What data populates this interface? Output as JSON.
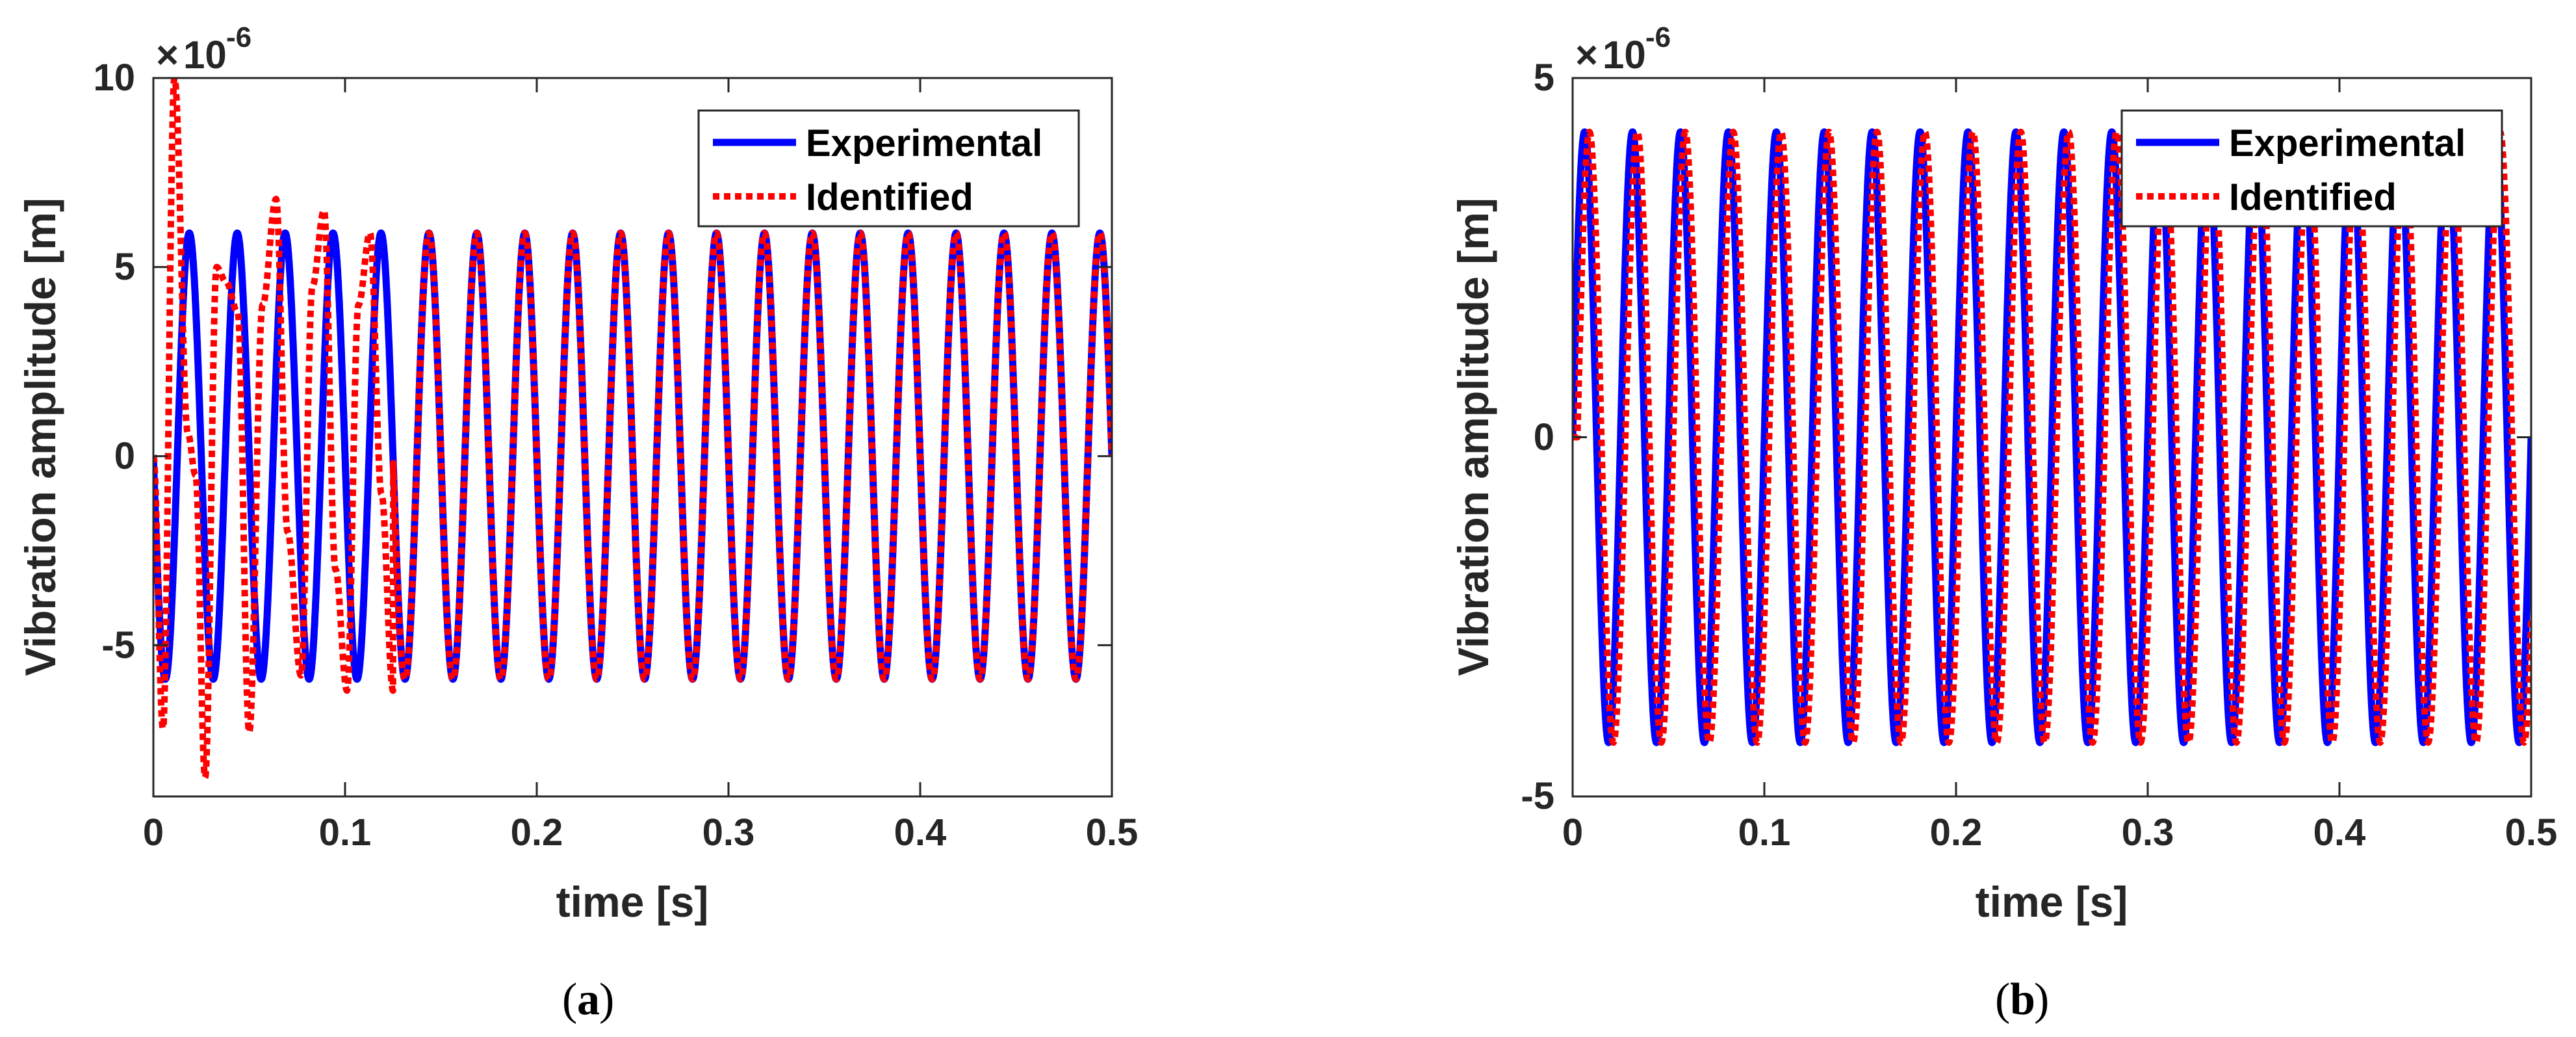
{
  "chart_data": [
    {
      "type": "line",
      "caption_letter": "a",
      "xlabel": "time [s]",
      "ylabel": "Vibration amplitude [m]",
      "y_scale_base": "10",
      "y_scale_exponent": "-6",
      "xlim": [
        0,
        0.5
      ],
      "ylim": [
        -9,
        10
      ],
      "x_ticks": [
        "0",
        "0.1",
        "0.2",
        "0.3",
        "0.4",
        "0.5"
      ],
      "y_ticks": [
        "-5",
        "0",
        "5",
        "10"
      ],
      "frequency_hz": 40,
      "series": [
        {
          "name": "Experimental",
          "color": "#0000ff",
          "style": "solid",
          "amplitude_1e6": 5.9,
          "phase": "negative-sine"
        },
        {
          "name": "Identified",
          "color": "#ff0000",
          "style": "dotted",
          "amplitude_1e6": 5.9,
          "transient_peaks_t": [
            0,
            0.005,
            0.011,
            0.018,
            0.022,
            0.027,
            0.033,
            0.038,
            0.044,
            0.05,
            0.057,
            0.064,
            0.07,
            0.077,
            0.083,
            0.089,
            0.095,
            0.101,
            0.107,
            0.113,
            0.119,
            0.125
          ],
          "transient_peaks_y": [
            0,
            -7.2,
            10,
            0.6,
            -0.5,
            -8.5,
            5.0,
            4.6,
            3.8,
            -7.3,
            4.0,
            6.8,
            -2.0,
            -5.8,
            4.5,
            6.5,
            -3.0,
            -6.2,
            4.0,
            5.9,
            -1.0,
            -6.2
          ]
        }
      ],
      "legend_position": "top-right"
    },
    {
      "type": "line",
      "caption_letter": "b",
      "xlabel": "time [s]",
      "ylabel": "Vibration amplitude [m]",
      "y_scale_base": "10",
      "y_scale_exponent": "-6",
      "xlim": [
        0,
        0.5
      ],
      "ylim": [
        -5,
        5
      ],
      "x_ticks": [
        "0",
        "0.1",
        "0.2",
        "0.3",
        "0.4",
        "0.5"
      ],
      "y_ticks": [
        "-5",
        "0",
        "5"
      ],
      "frequency_hz": 40,
      "series": [
        {
          "name": "Experimental",
          "color": "#0000ff",
          "style": "solid",
          "amplitude_1e6": 4.25,
          "phase_shift_s": 0.0
        },
        {
          "name": "Identified",
          "color": "#ff0000",
          "style": "dotted",
          "amplitude_1e6": 4.25,
          "phase_shift_s": 0.0025
        }
      ],
      "legend_position": "top-right"
    }
  ]
}
